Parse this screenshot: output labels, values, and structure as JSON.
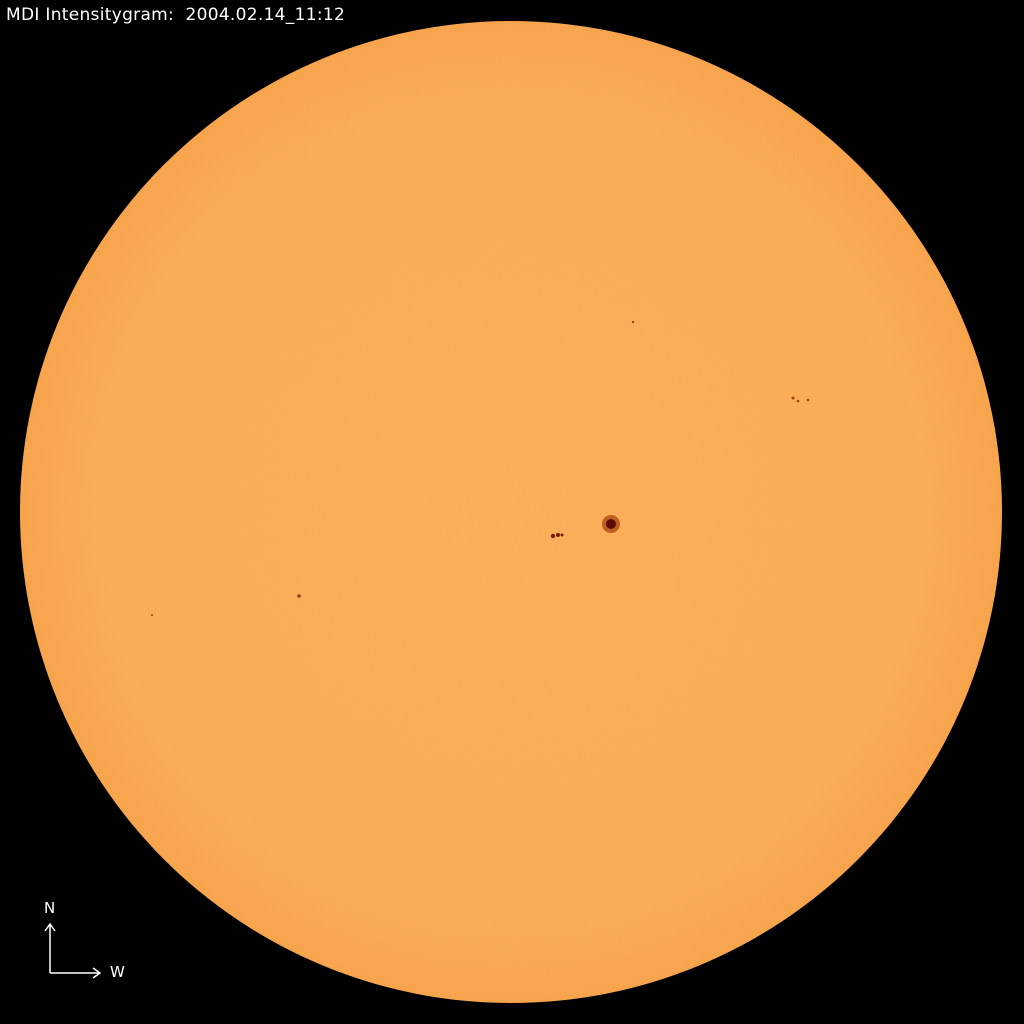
{
  "title": "MDI Intensitygram:  2004.02.14_11:12",
  "compass": {
    "north": "N",
    "west": "W"
  },
  "colors": {
    "disk": "#fbaa52",
    "limb": "#f7a048",
    "spot_umbra": "#5a0c00",
    "spot_penumbra": "#c85a14",
    "background": "#000000"
  }
}
